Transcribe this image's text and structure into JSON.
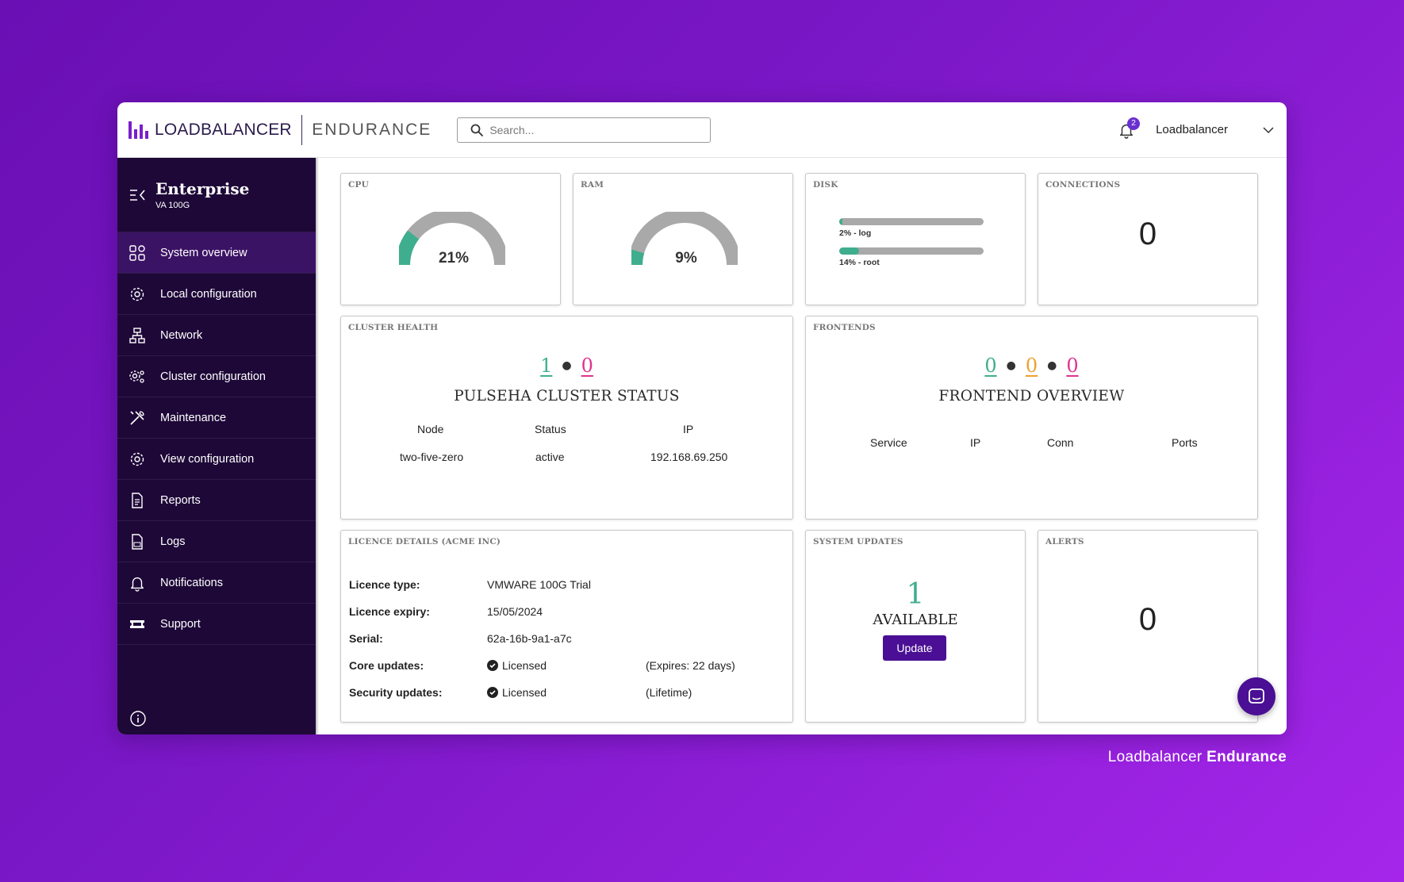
{
  "header": {
    "logo_text": "LOADBALANCER",
    "logo_sub": "ENDURANCE",
    "search_placeholder": "Search...",
    "notification_count": "2",
    "user_name": "Loadbalancer"
  },
  "sidebar": {
    "title": "Enterprise",
    "subtitle": "VA 100G",
    "items": [
      {
        "label": "System overview",
        "icon": "grid-icon"
      },
      {
        "label": "Local configuration",
        "icon": "gear-icon"
      },
      {
        "label": "Network",
        "icon": "network-icon"
      },
      {
        "label": "Cluster configuration",
        "icon": "cluster-gear-icon"
      },
      {
        "label": "Maintenance",
        "icon": "tools-icon"
      },
      {
        "label": "View configuration",
        "icon": "gear-icon"
      },
      {
        "label": "Reports",
        "icon": "document-icon"
      },
      {
        "label": "Logs",
        "icon": "log-file-icon"
      },
      {
        "label": "Notifications",
        "icon": "bell-icon"
      },
      {
        "label": "Support",
        "icon": "ticket-icon"
      }
    ]
  },
  "cpu": {
    "title": "CPU",
    "value_label": "21%",
    "fraction": 0.21
  },
  "ram": {
    "title": "RAM",
    "value_label": "9%",
    "fraction": 0.09
  },
  "disk": {
    "title": "DISK",
    "bars": [
      {
        "label": "2% - log",
        "fraction": 0.02
      },
      {
        "label": "14% - root",
        "fraction": 0.14
      }
    ]
  },
  "connections": {
    "title": "CONNECTIONS",
    "value": "0"
  },
  "cluster": {
    "title": "CLUSTER HEALTH",
    "count_ok": "1",
    "count_bad": "0",
    "heading": "PULSEHA CLUSTER STATUS",
    "columns": [
      "Node",
      "Status",
      "IP"
    ],
    "rows": [
      [
        "two-five-zero",
        "active",
        "192.168.69.250"
      ]
    ]
  },
  "frontends": {
    "title": "FRONTENDS",
    "count_green": "0",
    "count_orange": "0",
    "count_pink": "0",
    "heading": "FRONTEND OVERVIEW",
    "columns": [
      "Service",
      "IP",
      "Conn",
      "Ports"
    ]
  },
  "licence": {
    "title": "LICENCE DETAILS (ACME INC)",
    "rows": [
      {
        "key": "Licence type:",
        "value": "VMWARE 100G Trial",
        "extra": ""
      },
      {
        "key": "Licence expiry:",
        "value": "15/05/2024",
        "extra": ""
      },
      {
        "key": "Serial:",
        "value": "62a-16b-9a1-a7c",
        "extra": ""
      },
      {
        "key": "Core updates:",
        "value": "Licensed",
        "extra": "(Expires: 22 days)"
      },
      {
        "key": "Security updates:",
        "value": "Licensed",
        "extra": "(Lifetime)"
      }
    ]
  },
  "updates": {
    "title": "SYSTEM UPDATES",
    "count": "1",
    "label": "AVAILABLE",
    "button": "Update"
  },
  "alerts": {
    "title": "ALERTS",
    "value": "0"
  },
  "footer": {
    "brand_light": "Loadbalancer",
    "brand_bold": "Endurance"
  },
  "colors": {
    "accent": "#4a0f94",
    "green": "#3fae8e",
    "pink": "#e0338f",
    "orange": "#f0a030",
    "sidebar": "#1e0838"
  }
}
